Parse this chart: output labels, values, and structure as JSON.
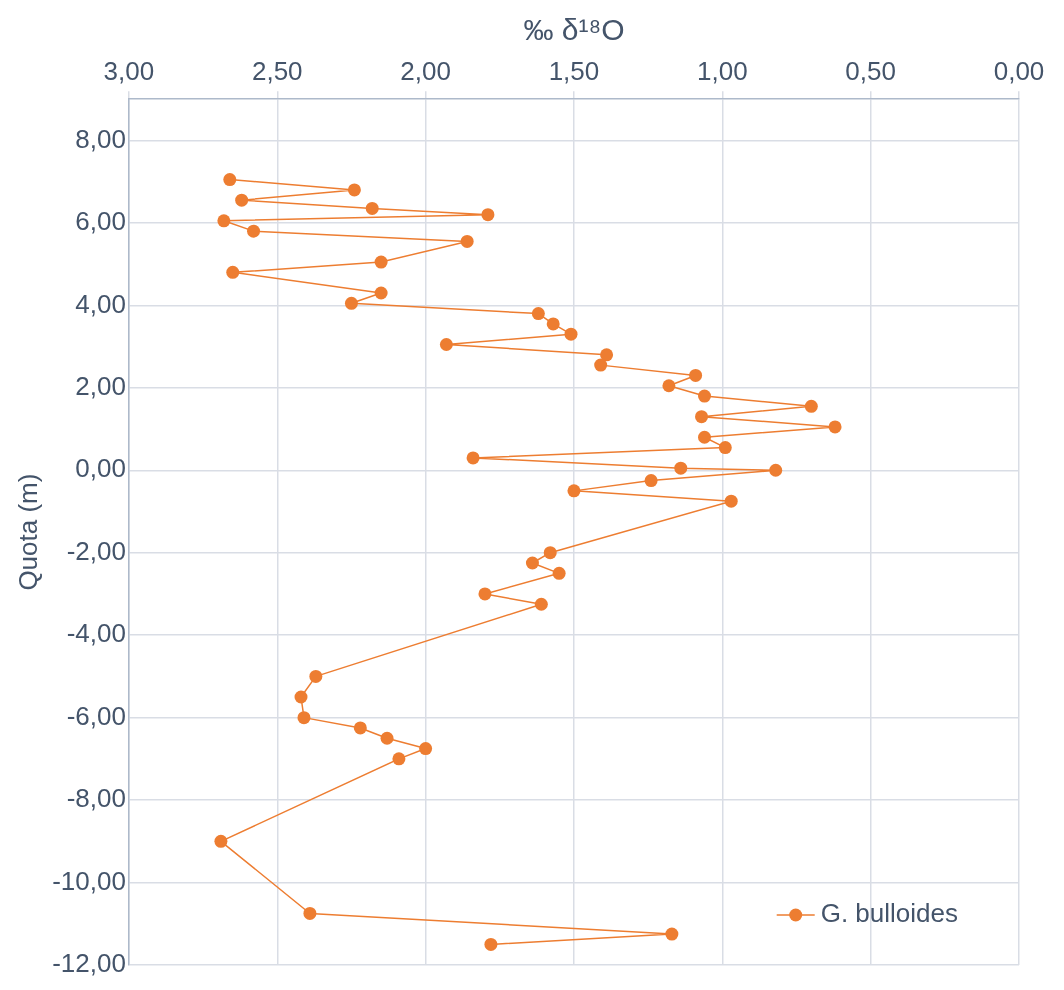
{
  "chart_data": {
    "type": "line",
    "xlabel": "‰ δ¹⁸O",
    "ylabel": "Quota (m)",
    "xlim": [
      3,
      0
    ],
    "xticks": [
      {
        "value": 3,
        "label": "3,00"
      },
      {
        "value": 2.5,
        "label": "2,50"
      },
      {
        "value": 2,
        "label": "2,00"
      },
      {
        "value": 1.5,
        "label": "1,50"
      },
      {
        "value": 1,
        "label": "1,00"
      },
      {
        "value": 0.5,
        "label": "0,50"
      },
      {
        "value": 0,
        "label": "0,00"
      }
    ],
    "ylim": [
      -12,
      9
    ],
    "yticks": [
      {
        "value": -12,
        "label": "-12,00"
      },
      {
        "value": -10,
        "label": "-10,00"
      },
      {
        "value": -8,
        "label": "-8,00"
      },
      {
        "value": -6,
        "label": "-6,00"
      },
      {
        "value": -4,
        "label": "-4,00"
      },
      {
        "value": -2,
        "label": "-2,00"
      },
      {
        "value": 0,
        "label": "0,00"
      },
      {
        "value": 2,
        "label": "2,00"
      },
      {
        "value": 4,
        "label": "4,00"
      },
      {
        "value": 6,
        "label": "6,00"
      },
      {
        "value": 8,
        "label": "8,00"
      }
    ],
    "grid": true,
    "legend": "bottom right",
    "marker": "circle",
    "line_style": "solid",
    "series": [
      {
        "name": "G. bulloides",
        "color": "#ed7d31",
        "x": [
          2.66,
          2.24,
          2.62,
          2.18,
          1.79,
          2.68,
          2.58,
          1.86,
          2.15,
          2.65,
          2.15,
          2.25,
          1.62,
          1.57,
          1.51,
          1.93,
          1.39,
          1.41,
          1.09,
          1.18,
          1.06,
          0.7,
          1.07,
          0.62,
          1.06,
          0.99,
          1.84,
          1.14,
          0.82,
          1.24,
          1.5,
          0.97,
          1.58,
          1.64,
          1.55,
          1.8,
          1.61,
          2.37,
          2.42,
          2.41,
          2.22,
          2.13,
          2.0,
          2.09,
          2.69,
          2.39,
          1.17,
          1.78
        ],
        "values": [
          7.05,
          6.8,
          6.55,
          6.35,
          6.2,
          6.05,
          5.8,
          5.55,
          5.05,
          4.8,
          4.3,
          4.05,
          3.8,
          3.55,
          3.3,
          3.05,
          2.8,
          2.55,
          2.3,
          2.05,
          1.8,
          1.55,
          1.3,
          1.05,
          0.8,
          0.55,
          0.3,
          0.05,
          0,
          -0.25,
          -0.5,
          -0.75,
          -2,
          -2.25,
          -2.5,
          -3,
          -3.25,
          -5,
          -5.5,
          -6,
          -6.25,
          -6.5,
          -6.75,
          -7,
          -9,
          -10.75,
          -11.25,
          -11.5
        ]
      }
    ]
  }
}
